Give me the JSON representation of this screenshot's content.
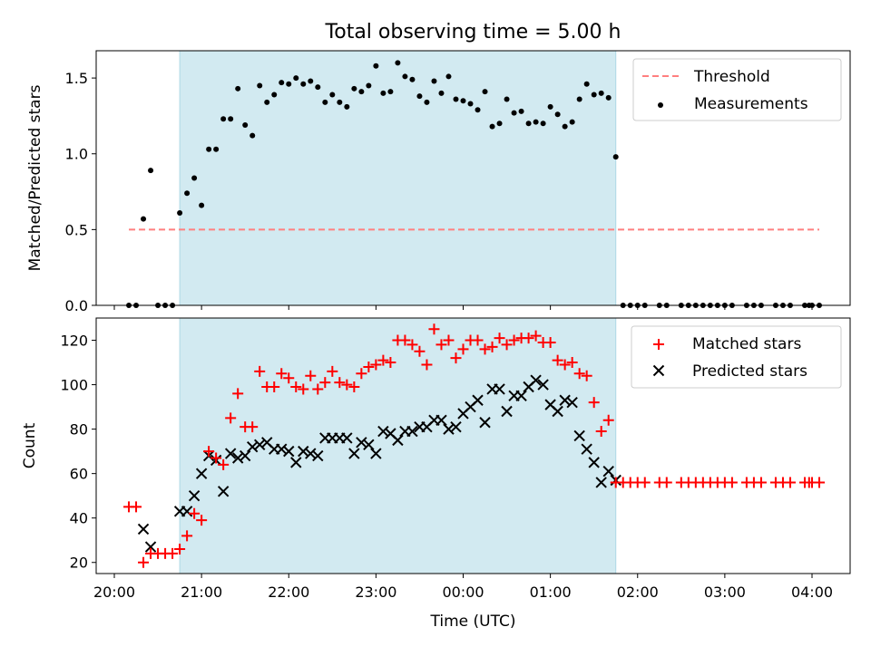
{
  "chart_data": [
    {
      "type": "scatter",
      "title": "Total observing time = 5.00 h",
      "xlabel": "",
      "ylabel": "Matched/Predicted stars",
      "ylim": [
        0,
        1.68
      ],
      "yticks": [
        0.0,
        0.5,
        1.0,
        1.5
      ],
      "ytick_labels": [
        "0.0",
        "0.5",
        "1.0",
        "1.5"
      ],
      "shaded_span": [
        "20:45",
        "01:45"
      ],
      "shade_color": "#add8e6",
      "legend": [
        "Threshold",
        "Measurements"
      ],
      "legend_position": "top-right",
      "grid": false,
      "threshold": {
        "name": "Threshold",
        "y": 0.5,
        "x": [
          "20:10",
          "04:05"
        ],
        "style": "dashed",
        "color": "#ff7f7f"
      },
      "series": [
        {
          "name": "Measurements",
          "color": "#000000",
          "marker": "dot",
          "points": [
            [
              "20:10",
              0.0
            ],
            [
              "20:15",
              0.0
            ],
            [
              "20:20",
              0.57
            ],
            [
              "20:25",
              0.89
            ],
            [
              "20:30",
              0.0
            ],
            [
              "20:35",
              0.0
            ],
            [
              "20:40",
              0.0
            ],
            [
              "20:45",
              0.61
            ],
            [
              "20:50",
              0.74
            ],
            [
              "20:55",
              0.84
            ],
            [
              "21:00",
              0.66
            ],
            [
              "21:05",
              1.03
            ],
            [
              "21:10",
              1.03
            ],
            [
              "21:15",
              1.23
            ],
            [
              "21:20",
              1.23
            ],
            [
              "21:25",
              1.43
            ],
            [
              "21:30",
              1.19
            ],
            [
              "21:35",
              1.12
            ],
            [
              "21:40",
              1.45
            ],
            [
              "21:45",
              1.34
            ],
            [
              "21:50",
              1.39
            ],
            [
              "21:55",
              1.47
            ],
            [
              "22:00",
              1.46
            ],
            [
              "22:05",
              1.5
            ],
            [
              "22:10",
              1.46
            ],
            [
              "22:15",
              1.48
            ],
            [
              "22:20",
              1.44
            ],
            [
              "22:25",
              1.34
            ],
            [
              "22:30",
              1.39
            ],
            [
              "22:35",
              1.34
            ],
            [
              "22:40",
              1.31
            ],
            [
              "22:45",
              1.43
            ],
            [
              "22:50",
              1.41
            ],
            [
              "22:55",
              1.45
            ],
            [
              "23:00",
              1.58
            ],
            [
              "23:05",
              1.4
            ],
            [
              "23:10",
              1.41
            ],
            [
              "23:15",
              1.6
            ],
            [
              "23:20",
              1.51
            ],
            [
              "23:25",
              1.49
            ],
            [
              "23:30",
              1.38
            ],
            [
              "23:35",
              1.34
            ],
            [
              "23:40",
              1.48
            ],
            [
              "23:45",
              1.4
            ],
            [
              "23:50",
              1.51
            ],
            [
              "23:55",
              1.36
            ],
            [
              "00:00",
              1.35
            ],
            [
              "00:05",
              1.33
            ],
            [
              "00:10",
              1.29
            ],
            [
              "00:15",
              1.41
            ],
            [
              "00:20",
              1.18
            ],
            [
              "00:25",
              1.2
            ],
            [
              "00:30",
              1.36
            ],
            [
              "00:35",
              1.27
            ],
            [
              "00:40",
              1.28
            ],
            [
              "00:45",
              1.2
            ],
            [
              "00:50",
              1.21
            ],
            [
              "00:55",
              1.2
            ],
            [
              "01:00",
              1.31
            ],
            [
              "01:05",
              1.26
            ],
            [
              "01:10",
              1.18
            ],
            [
              "01:15",
              1.21
            ],
            [
              "01:20",
              1.36
            ],
            [
              "01:25",
              1.46
            ],
            [
              "01:30",
              1.39
            ],
            [
              "01:35",
              1.4
            ],
            [
              "01:40",
              1.37
            ],
            [
              "01:45",
              0.98
            ],
            [
              "01:50",
              0.0
            ],
            [
              "01:55",
              0.0
            ],
            [
              "02:00",
              0.0
            ],
            [
              "02:05",
              0.0
            ],
            [
              "02:15",
              0.0
            ],
            [
              "02:20",
              0.0
            ],
            [
              "02:30",
              0.0
            ],
            [
              "02:35",
              0.0
            ],
            [
              "02:40",
              0.0
            ],
            [
              "02:45",
              0.0
            ],
            [
              "02:50",
              0.0
            ],
            [
              "02:55",
              0.0
            ],
            [
              "03:00",
              0.0
            ],
            [
              "03:05",
              0.0
            ],
            [
              "03:15",
              0.0
            ],
            [
              "03:20",
              0.0
            ],
            [
              "03:25",
              0.0
            ],
            [
              "03:35",
              0.0
            ],
            [
              "03:40",
              0.0
            ],
            [
              "03:45",
              0.0
            ],
            [
              "03:55",
              0.0
            ],
            [
              "03:58",
              0.0
            ],
            [
              "04:00",
              0.0
            ],
            [
              "04:05",
              0.0
            ]
          ]
        }
      ]
    },
    {
      "type": "scatter",
      "title": "",
      "xlabel": "Time (UTC)",
      "ylabel": "Count",
      "ylim": [
        15,
        130
      ],
      "yticks": [
        20,
        40,
        60,
        80,
        100,
        120
      ],
      "ytick_labels": [
        "20",
        "40",
        "60",
        "80",
        "100",
        "120"
      ],
      "xticks": [
        "20:00",
        "21:00",
        "22:00",
        "23:00",
        "00:00",
        "01:00",
        "02:00",
        "03:00",
        "04:00"
      ],
      "shaded_span": [
        "20:45",
        "01:45"
      ],
      "shade_color": "#add8e6",
      "legend": [
        "Matched stars",
        "Predicted stars"
      ],
      "legend_position": "top-right",
      "grid": false,
      "series": [
        {
          "name": "Matched stars",
          "color": "#ff0000",
          "marker": "plus",
          "points": [
            [
              "20:10",
              45
            ],
            [
              "20:15",
              45
            ],
            [
              "20:20",
              20
            ],
            [
              "20:25",
              24
            ],
            [
              "20:30",
              24
            ],
            [
              "20:35",
              24
            ],
            [
              "20:40",
              24
            ],
            [
              "20:45",
              26
            ],
            [
              "20:50",
              32
            ],
            [
              "20:55",
              42
            ],
            [
              "21:00",
              39
            ],
            [
              "21:05",
              70
            ],
            [
              "21:10",
              67
            ],
            [
              "21:15",
              64
            ],
            [
              "21:20",
              85
            ],
            [
              "21:25",
              96
            ],
            [
              "21:30",
              81
            ],
            [
              "21:35",
              81
            ],
            [
              "21:40",
              106
            ],
            [
              "21:45",
              99
            ],
            [
              "21:50",
              99
            ],
            [
              "21:55",
              105
            ],
            [
              "22:00",
              103
            ],
            [
              "22:05",
              99
            ],
            [
              "22:10",
              98
            ],
            [
              "22:15",
              104
            ],
            [
              "22:20",
              98
            ],
            [
              "22:25",
              101
            ],
            [
              "22:30",
              106
            ],
            [
              "22:35",
              101
            ],
            [
              "22:40",
              100
            ],
            [
              "22:45",
              99
            ],
            [
              "22:50",
              105
            ],
            [
              "22:55",
              108
            ],
            [
              "23:00",
              109
            ],
            [
              "23:05",
              111
            ],
            [
              "23:10",
              110
            ],
            [
              "23:15",
              120
            ],
            [
              "23:20",
              120
            ],
            [
              "23:25",
              118
            ],
            [
              "23:30",
              115
            ],
            [
              "23:35",
              109
            ],
            [
              "23:40",
              125
            ],
            [
              "23:45",
              118
            ],
            [
              "23:50",
              120
            ],
            [
              "23:55",
              112
            ],
            [
              "00:00",
              116
            ],
            [
              "00:05",
              120
            ],
            [
              "00:10",
              120
            ],
            [
              "00:15",
              116
            ],
            [
              "00:20",
              117
            ],
            [
              "00:25",
              121
            ],
            [
              "00:30",
              118
            ],
            [
              "00:35",
              120
            ],
            [
              "00:40",
              121
            ],
            [
              "00:45",
              121
            ],
            [
              "00:50",
              122
            ],
            [
              "00:55",
              119
            ],
            [
              "01:00",
              119
            ],
            [
              "01:05",
              111
            ],
            [
              "01:10",
              109
            ],
            [
              "01:15",
              110
            ],
            [
              "01:20",
              105
            ],
            [
              "01:25",
              104
            ],
            [
              "01:30",
              92
            ],
            [
              "01:35",
              79
            ],
            [
              "01:40",
              84
            ],
            [
              "01:45",
              56
            ],
            [
              "01:50",
              56
            ],
            [
              "01:55",
              56
            ],
            [
              "02:00",
              56
            ],
            [
              "02:05",
              56
            ],
            [
              "02:15",
              56
            ],
            [
              "02:20",
              56
            ],
            [
              "02:30",
              56
            ],
            [
              "02:35",
              56
            ],
            [
              "02:40",
              56
            ],
            [
              "02:45",
              56
            ],
            [
              "02:50",
              56
            ],
            [
              "02:55",
              56
            ],
            [
              "03:00",
              56
            ],
            [
              "03:05",
              56
            ],
            [
              "03:15",
              56
            ],
            [
              "03:20",
              56
            ],
            [
              "03:25",
              56
            ],
            [
              "03:35",
              56
            ],
            [
              "03:40",
              56
            ],
            [
              "03:45",
              56
            ],
            [
              "03:55",
              56
            ],
            [
              "03:58",
              56
            ],
            [
              "04:00",
              56
            ],
            [
              "04:05",
              56
            ]
          ]
        },
        {
          "name": "Predicted stars",
          "color": "#000000",
          "marker": "x",
          "points": [
            [
              "20:20",
              35
            ],
            [
              "20:25",
              27
            ],
            [
              "20:45",
              43
            ],
            [
              "20:50",
              43
            ],
            [
              "20:55",
              50
            ],
            [
              "21:00",
              60
            ],
            [
              "21:05",
              68
            ],
            [
              "21:10",
              66
            ],
            [
              "21:15",
              52
            ],
            [
              "21:20",
              69
            ],
            [
              "21:25",
              67
            ],
            [
              "21:30",
              68
            ],
            [
              "21:35",
              72
            ],
            [
              "21:40",
              73
            ],
            [
              "21:45",
              74
            ],
            [
              "21:50",
              71
            ],
            [
              "21:55",
              71
            ],
            [
              "22:00",
              70
            ],
            [
              "22:05",
              65
            ],
            [
              "22:10",
              70
            ],
            [
              "22:15",
              69
            ],
            [
              "22:20",
              68
            ],
            [
              "22:25",
              76
            ],
            [
              "22:30",
              76
            ],
            [
              "22:35",
              76
            ],
            [
              "22:40",
              76
            ],
            [
              "22:45",
              69
            ],
            [
              "22:50",
              74
            ],
            [
              "22:55",
              73
            ],
            [
              "23:00",
              69
            ],
            [
              "23:05",
              79
            ],
            [
              "23:10",
              78
            ],
            [
              "23:15",
              75
            ],
            [
              "23:20",
              79
            ],
            [
              "23:25",
              79
            ],
            [
              "23:30",
              81
            ],
            [
              "23:35",
              81
            ],
            [
              "23:40",
              84
            ],
            [
              "23:45",
              84
            ],
            [
              "23:50",
              80
            ],
            [
              "23:55",
              81
            ],
            [
              "00:00",
              87
            ],
            [
              "00:05",
              90
            ],
            [
              "00:10",
              93
            ],
            [
              "00:15",
              83
            ],
            [
              "00:20",
              98
            ],
            [
              "00:25",
              98
            ],
            [
              "00:30",
              88
            ],
            [
              "00:35",
              95
            ],
            [
              "00:40",
              95
            ],
            [
              "00:45",
              99
            ],
            [
              "00:50",
              102
            ],
            [
              "00:55",
              100
            ],
            [
              "01:00",
              91
            ],
            [
              "01:05",
              88
            ],
            [
              "01:10",
              93
            ],
            [
              "01:15",
              92
            ],
            [
              "01:20",
              77
            ],
            [
              "01:25",
              71
            ],
            [
              "01:30",
              65
            ],
            [
              "01:35",
              56
            ],
            [
              "01:40",
              61
            ],
            [
              "01:45",
              57
            ]
          ]
        }
      ]
    }
  ]
}
